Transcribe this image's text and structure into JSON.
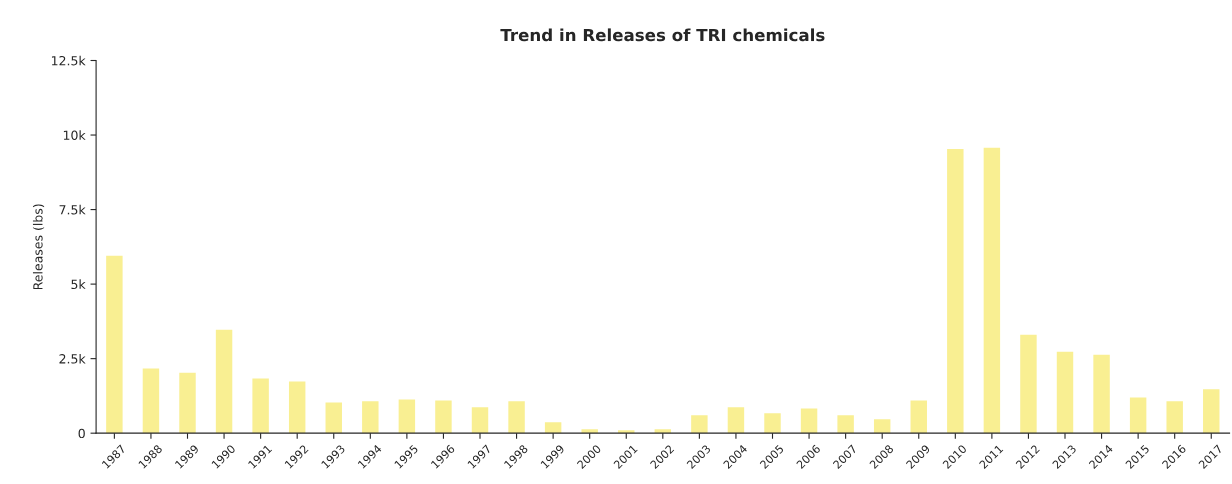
{
  "chart_data": {
    "type": "bar",
    "title": "Trend in Releases of TRI chemicals",
    "ylabel": "Releases (lbs)",
    "categories": [
      "1987",
      "1988",
      "1989",
      "1990",
      "1991",
      "1992",
      "1993",
      "1994",
      "1995",
      "1996",
      "1997",
      "1998",
      "1999",
      "2000",
      "2001",
      "2002",
      "2003",
      "2004",
      "2005",
      "2006",
      "2007",
      "2008",
      "2009",
      "2010",
      "2011",
      "2012",
      "2013",
      "2014",
      "2015",
      "2016",
      "2017"
    ],
    "values": [
      5950,
      2170,
      2030,
      3470,
      1830,
      1730,
      1030,
      1070,
      1130,
      1100,
      870,
      1070,
      370,
      130,
      100,
      130,
      600,
      870,
      670,
      830,
      600,
      470,
      1100,
      9530,
      9570,
      3300,
      2730,
      2630,
      1200,
      1070,
      1470
    ],
    "color": "#f9ef92",
    "ylim": [
      0,
      12500
    ],
    "yticks": [
      0,
      {
        "value": 2500,
        "label": "2.5k"
      },
      {
        "value": 5000,
        "label": "5k"
      },
      {
        "value": 7500,
        "label": "7.5k"
      },
      {
        "value": 10000,
        "label": "10k"
      },
      {
        "value": 12500,
        "label": "12.5k"
      }
    ],
    "grid": false
  }
}
